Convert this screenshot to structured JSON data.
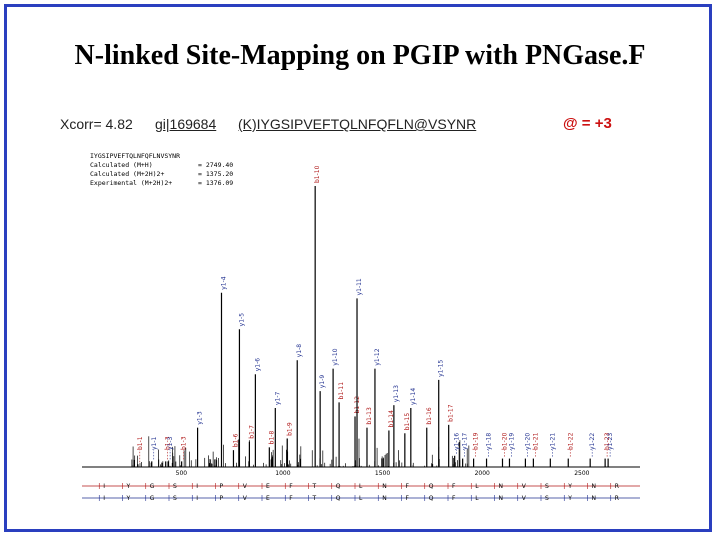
{
  "slide": {
    "title": "N-linked Site-Mapping on PGIP with PNGase.F",
    "xcorr": "Xcorr= 4.82",
    "gi": "gi|169684",
    "peptide": "(K)IYGSIPVEFTQLNFQFLN@VSYNR",
    "at_note": "@ = +3",
    "colors": {
      "border": "#2a3fbf",
      "b_ion": "#b01818",
      "y_ion": "#1f2f8f",
      "mod": "#cc1111"
    }
  },
  "chart_data": {
    "type": "bar",
    "title": "",
    "xlabel": "",
    "ylabel": "",
    "info": [
      {
        "label": "IYGSIPVEFTQLNFQFLNVSYNR",
        "value": ""
      },
      {
        "label": "Calculated (M+H)",
        "value": "= 2749.40"
      },
      {
        "label": "Calculated (M+2H)2+",
        "value": "= 1375.20"
      },
      {
        "label": "Experimental (M+2H)2+",
        "value": "= 1376.09"
      }
    ],
    "xlim": [
      0,
      2800
    ],
    "ylim": [
      0,
      100
    ],
    "x_ticks": [
      "500",
      "1000",
      "1500",
      "2000",
      "2500"
    ],
    "peaks": [
      {
        "x": 280,
        "y": 1,
        "label": "b1-1",
        "series": "b"
      },
      {
        "x": 350,
        "y": 2,
        "label": "y1-1",
        "series": "y"
      },
      {
        "x": 420,
        "y": 2,
        "label": "b1-3",
        "series": "b"
      },
      {
        "x": 432,
        "y": 2,
        "label": "y1-3",
        "series": "y"
      },
      {
        "x": 500,
        "y": 2,
        "label": "b1-3",
        "series": "b"
      },
      {
        "x": 580,
        "y": 14,
        "label": "y1-3",
        "series": "y"
      },
      {
        "x": 700,
        "y": 62,
        "label": "y1-4",
        "series": "y"
      },
      {
        "x": 760,
        "y": 6,
        "label": "b1-6",
        "series": "b"
      },
      {
        "x": 790,
        "y": 49,
        "label": "y1-5",
        "series": "y"
      },
      {
        "x": 840,
        "y": 9,
        "label": "b1-7",
        "series": "b"
      },
      {
        "x": 870,
        "y": 33,
        "label": "y1-6",
        "series": "y"
      },
      {
        "x": 940,
        "y": 7,
        "label": "b1-8",
        "series": "b"
      },
      {
        "x": 970,
        "y": 21,
        "label": "y1-7",
        "series": "y"
      },
      {
        "x": 1030,
        "y": 10,
        "label": "b1-9",
        "series": "b"
      },
      {
        "x": 1080,
        "y": 38,
        "label": "y1-8",
        "series": "y"
      },
      {
        "x": 1170,
        "y": 100,
        "label": "b1-10",
        "series": "b"
      },
      {
        "x": 1195,
        "y": 27,
        "label": "y1-9",
        "series": "y"
      },
      {
        "x": 1260,
        "y": 35,
        "label": "y1-10",
        "series": "y"
      },
      {
        "x": 1290,
        "y": 23,
        "label": "b1-11",
        "series": "b"
      },
      {
        "x": 1370,
        "y": 18,
        "label": "b1-12",
        "series": "b"
      },
      {
        "x": 1380,
        "y": 60,
        "label": "y1-11",
        "series": "y"
      },
      {
        "x": 1430,
        "y": 14,
        "label": "b1-13",
        "series": "b"
      },
      {
        "x": 1470,
        "y": 35,
        "label": "y1-12",
        "series": "y"
      },
      {
        "x": 1540,
        "y": 13,
        "label": "b1-14",
        "series": "b"
      },
      {
        "x": 1565,
        "y": 22,
        "label": "y1-13",
        "series": "y"
      },
      {
        "x": 1620,
        "y": 12,
        "label": "b1-15",
        "series": "b"
      },
      {
        "x": 1650,
        "y": 21,
        "label": "y1-14",
        "series": "y"
      },
      {
        "x": 1730,
        "y": 14,
        "label": "b1-16",
        "series": "b"
      },
      {
        "x": 1790,
        "y": 31,
        "label": "y1-15",
        "series": "y"
      },
      {
        "x": 1840,
        "y": 15,
        "label": "b1-17",
        "series": "b"
      },
      {
        "x": 1870,
        "y": 4,
        "label": "y1-16",
        "series": "y"
      },
      {
        "x": 1910,
        "y": 3,
        "label": "y1-17",
        "series": "y"
      },
      {
        "x": 1965,
        "y": 3,
        "label": "b1-19",
        "series": "b"
      },
      {
        "x": 2030,
        "y": 3,
        "label": "y1-18",
        "series": "y"
      },
      {
        "x": 2110,
        "y": 3,
        "label": "b1-20",
        "series": "b"
      },
      {
        "x": 2145,
        "y": 3,
        "label": "y1-19",
        "series": "y"
      },
      {
        "x": 2225,
        "y": 3,
        "label": "y1-20",
        "series": "y"
      },
      {
        "x": 2265,
        "y": 3,
        "label": "b1-21",
        "series": "b"
      },
      {
        "x": 2350,
        "y": 3,
        "label": "y1-21",
        "series": "y"
      },
      {
        "x": 2440,
        "y": 3,
        "label": "b1-22",
        "series": "b"
      },
      {
        "x": 2550,
        "y": 3,
        "label": "y1-22",
        "series": "y"
      },
      {
        "x": 2625,
        "y": 3,
        "label": "b1-23",
        "series": "b"
      },
      {
        "x": 2640,
        "y": 3,
        "label": "y1-23",
        "series": "y"
      }
    ],
    "noise_seed": 7,
    "sequence_top": [
      "I",
      "Y",
      "G",
      "S",
      "I",
      "P",
      "V",
      "E",
      "F",
      "T",
      "Q",
      "L",
      "N",
      "F",
      "Q",
      "F",
      "L",
      "N",
      "V",
      "S",
      "Y",
      "N",
      "R"
    ],
    "sequence_bottom": [
      "I",
      "Y",
      "G",
      "S",
      "I",
      "P",
      "V",
      "E",
      "F",
      "T",
      "Q",
      "L",
      "N",
      "F",
      "Q",
      "F",
      "L",
      "N",
      "V",
      "S",
      "Y",
      "N",
      "R"
    ]
  }
}
